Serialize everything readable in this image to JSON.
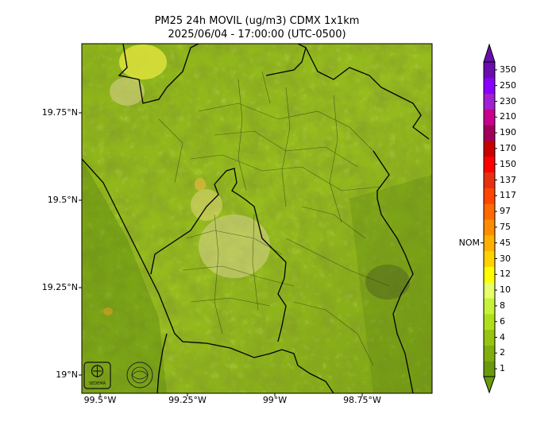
{
  "title": {
    "line1": "PM25 24h MOVIL (ug/m3) CDMX 1x1km",
    "line2": "2025/06/04 - 17:00:00 (UTC-0500)"
  },
  "map": {
    "lat_ticks": [
      "19.75°N",
      "19.5°N",
      "19.25°N",
      "19°N"
    ],
    "lon_ticks": [
      "99.5°W",
      "99.25°W",
      "99°W",
      "98.75°W"
    ],
    "logos": [
      {
        "name": "sedema-logo",
        "text": "SEDEMA"
      },
      {
        "name": "gobierno-logo",
        "text": ""
      }
    ]
  },
  "colorbar": {
    "labels": [
      "1",
      "2",
      "4",
      "6",
      "8",
      "10",
      "12",
      "30",
      "45",
      "75",
      "97",
      "117",
      "137",
      "150",
      "170",
      "190",
      "210",
      "230",
      "250",
      "350"
    ],
    "colors": [
      "#6a9a0c",
      "#7fae0e",
      "#96c410",
      "#aee01a",
      "#c8f23a",
      "#e6ff6a",
      "#ffff00",
      "#ffd200",
      "#ffb000",
      "#ff8c00",
      "#ff6a00",
      "#ff4500",
      "#e83010",
      "#ff0000",
      "#c80000",
      "#a0005a",
      "#c8008c",
      "#a020d2",
      "#8a00ff",
      "#6a0dad"
    ],
    "nom_label": "NOM",
    "nom_value": 45
  }
}
